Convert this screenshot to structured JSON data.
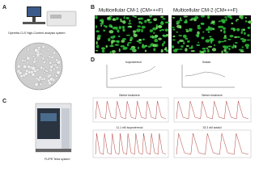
{
  "panels": {
    "A": {
      "label": "A",
      "caption": "Operetta CLS High-Content analysis system"
    },
    "B": {
      "label": "B",
      "titles": [
        "Multicellular CM-1 (CM+++F)",
        "Multicellular CM-2 (CM+++F)"
      ]
    },
    "C": {
      "label": "C",
      "caption": "FLIPR Tetra system"
    },
    "D": {
      "label": "D",
      "plots": [
        {
          "title": "Isoproterenol"
        },
        {
          "title": "Sotalol"
        }
      ],
      "traces": [
        {
          "title": "Before treatment"
        },
        {
          "title": "Before treatment"
        },
        {
          "title": "11.1 nM Isoproterenol"
        },
        {
          "title": "33.3 uM sotalol"
        }
      ]
    }
  }
}
